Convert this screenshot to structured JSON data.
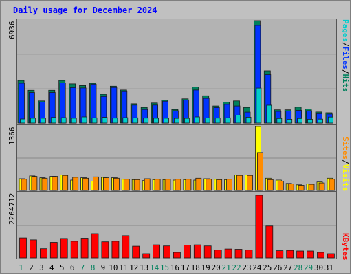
{
  "title": "Daily usage for December 2024",
  "colors": {
    "hits": "#00805c",
    "files": "#0033ff",
    "pages": "#00cccc",
    "visits": "#ffff00",
    "sites": "#ff8c00",
    "kbytes": "#ff0000",
    "weekday": "#000000",
    "weekend": "#00805c"
  },
  "chart_data": [
    {
      "type": "bar",
      "panel": "top",
      "ymax_label": "6936",
      "ylim": [
        0,
        6936
      ],
      "legend": [
        {
          "text": "Pages",
          "sep": "/",
          "color": "#00cccc"
        },
        {
          "text": "Files",
          "sep": "/",
          "color": "#0033ff"
        },
        {
          "text": "Hits",
          "sep": "",
          "color": "#00805c"
        }
      ],
      "categories": [
        "1",
        "2",
        "3",
        "4",
        "5",
        "6",
        "7",
        "8",
        "9",
        "10",
        "11",
        "12",
        "13",
        "14",
        "15",
        "16",
        "17",
        "18",
        "19",
        "20",
        "21",
        "22",
        "23",
        "24",
        "25",
        "26",
        "27",
        "28",
        "29",
        "30",
        "31"
      ],
      "series": [
        {
          "name": "Hits",
          "values": [
            2880,
            2220,
            1500,
            2220,
            2880,
            2660,
            2540,
            2700,
            1950,
            2500,
            2240,
            1310,
            1060,
            1360,
            1560,
            920,
            1640,
            2440,
            1850,
            1160,
            1420,
            1500,
            1060,
            6936,
            3540,
            900,
            900,
            1080,
            950,
            750,
            700
          ]
        },
        {
          "name": "Files",
          "values": [
            2700,
            2070,
            1420,
            2070,
            2720,
            2400,
            2380,
            2640,
            1800,
            2410,
            2130,
            1220,
            920,
            1220,
            1480,
            840,
            1560,
            2240,
            1670,
            1050,
            1260,
            1160,
            740,
            6610,
            3280,
            790,
            820,
            860,
            840,
            640,
            610
          ]
        },
        {
          "name": "Pages",
          "values": [
            280,
            330,
            330,
            380,
            370,
            330,
            420,
            360,
            390,
            340,
            370,
            360,
            340,
            330,
            330,
            320,
            320,
            420,
            350,
            340,
            360,
            540,
            400,
            2370,
            1210,
            310,
            260,
            310,
            260,
            270,
            410
          ]
        }
      ]
    },
    {
      "type": "bar",
      "panel": "middle",
      "ymax_label": "1366",
      "ylim": [
        0,
        1366
      ],
      "legend": [
        {
          "text": "Sites",
          "sep": "/",
          "color": "#ff8c00"
        },
        {
          "text": "Visits",
          "sep": "",
          "color": "#ffff00"
        }
      ],
      "categories": [
        "1",
        "2",
        "3",
        "4",
        "5",
        "6",
        "7",
        "8",
        "9",
        "10",
        "11",
        "12",
        "13",
        "14",
        "15",
        "16",
        "17",
        "18",
        "19",
        "20",
        "21",
        "22",
        "23",
        "24",
        "25",
        "26",
        "27",
        "28",
        "29",
        "30",
        "31"
      ],
      "series": [
        {
          "name": "Visits",
          "values": [
            250,
            310,
            270,
            300,
            330,
            220,
            270,
            200,
            280,
            270,
            240,
            230,
            210,
            230,
            230,
            220,
            230,
            220,
            250,
            240,
            230,
            330,
            330,
            1366,
            260,
            220,
            150,
            120,
            140,
            180,
            260
          ]
        },
        {
          "name": "Sites",
          "values": [
            240,
            300,
            260,
            300,
            320,
            280,
            260,
            290,
            270,
            260,
            240,
            230,
            250,
            240,
            240,
            240,
            240,
            260,
            240,
            230,
            240,
            320,
            320,
            810,
            230,
            200,
            140,
            110,
            130,
            160,
            240
          ]
        }
      ]
    },
    {
      "type": "bar",
      "panel": "bottom",
      "ymax_label": "2264712",
      "ylim": [
        0,
        2264712
      ],
      "legend": [
        {
          "text": "KBytes",
          "sep": "",
          "color": "#ff0000"
        }
      ],
      "categories": [
        "1",
        "2",
        "3",
        "4",
        "5",
        "6",
        "7",
        "8",
        "9",
        "10",
        "11",
        "12",
        "13",
        "14",
        "15",
        "16",
        "17",
        "18",
        "19",
        "20",
        "21",
        "22",
        "23",
        "24",
        "25",
        "26",
        "27",
        "28",
        "29",
        "30",
        "31"
      ],
      "series": [
        {
          "name": "KBytes",
          "values": [
            720000,
            650000,
            330000,
            560000,
            700000,
            600000,
            710000,
            870000,
            580000,
            600000,
            800000,
            420000,
            150000,
            470000,
            430000,
            200000,
            460000,
            470000,
            430000,
            280000,
            320000,
            310000,
            280000,
            2264712,
            1150000,
            260000,
            270000,
            250000,
            250000,
            200000,
            150000
          ]
        }
      ]
    }
  ],
  "weekend_days": [
    1,
    7,
    8,
    14,
    15,
    21,
    22,
    28,
    29
  ]
}
